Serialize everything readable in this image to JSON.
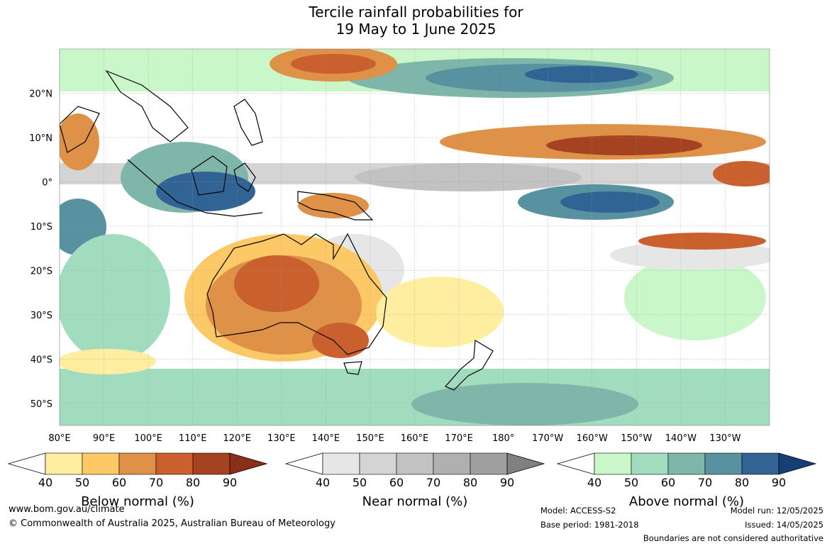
{
  "title": {
    "line1": "Tercile rainfall probabilities for",
    "line2": "19 May to 1 June 2025"
  },
  "map": {
    "lon_labels": [
      "80°E",
      "90°E",
      "100°E",
      "110°E",
      "120°E",
      "130°E",
      "140°E",
      "150°E",
      "160°E",
      "170°E",
      "180°",
      "170°W",
      "160°W",
      "150°W",
      "140°W",
      "130°W"
    ],
    "lat_labels": [
      "20°N",
      "10°N",
      "0°",
      "10°S",
      "20°S",
      "30°S",
      "40°S",
      "50°S"
    ],
    "extent": {
      "lon_min": 80,
      "lon_max": 240,
      "lat_min": -55,
      "lat_max": 30
    },
    "categories_colors": {
      "below": [
        "#ffeea0",
        "#fdc966",
        "#de9147",
        "#c9602e",
        "#a5421f",
        "#8b2f1a"
      ],
      "near": [
        "#e6e6e6",
        "#d4d4d4",
        "#c2c2c2",
        "#b0b0b0",
        "#9f9f9f",
        "#808080"
      ],
      "above": [
        "#c9f7c9",
        "#a2dcbf",
        "#7eb7aa",
        "#58919f",
        "#316495",
        "#163f76"
      ]
    }
  },
  "colorbars": [
    {
      "title": "Below normal (%)",
      "ticks": [
        "40",
        "50",
        "60",
        "70",
        "80",
        "90"
      ],
      "colors": [
        "#ffeea0",
        "#fdc966",
        "#de9147",
        "#c9602e",
        "#a5421f",
        "#8b2f1a"
      ]
    },
    {
      "title": "Near normal (%)",
      "ticks": [
        "40",
        "50",
        "60",
        "70",
        "80",
        "90"
      ],
      "colors": [
        "#e6e6e6",
        "#d4d4d4",
        "#c2c2c2",
        "#b0b0b0",
        "#9f9f9f",
        "#808080"
      ]
    },
    {
      "title": "Above normal (%)",
      "ticks": [
        "40",
        "50",
        "60",
        "70",
        "80",
        "90"
      ],
      "colors": [
        "#c9f7c9",
        "#a2dcbf",
        "#7eb7aa",
        "#58919f",
        "#316495",
        "#163f76"
      ]
    }
  ],
  "footer": {
    "url": "www.bom.gov.au/climate",
    "copyright": "© Commonwealth of Australia 2025, Australian Bureau of Meteorology",
    "model": "Model: ACCESS-S2",
    "base_period": "Base period: 1981-2018",
    "model_run": "Model run: 12/05/2025",
    "issued": "Issued: 14/05/2025",
    "disclaimer": "Boundaries are not considered authoritative"
  }
}
